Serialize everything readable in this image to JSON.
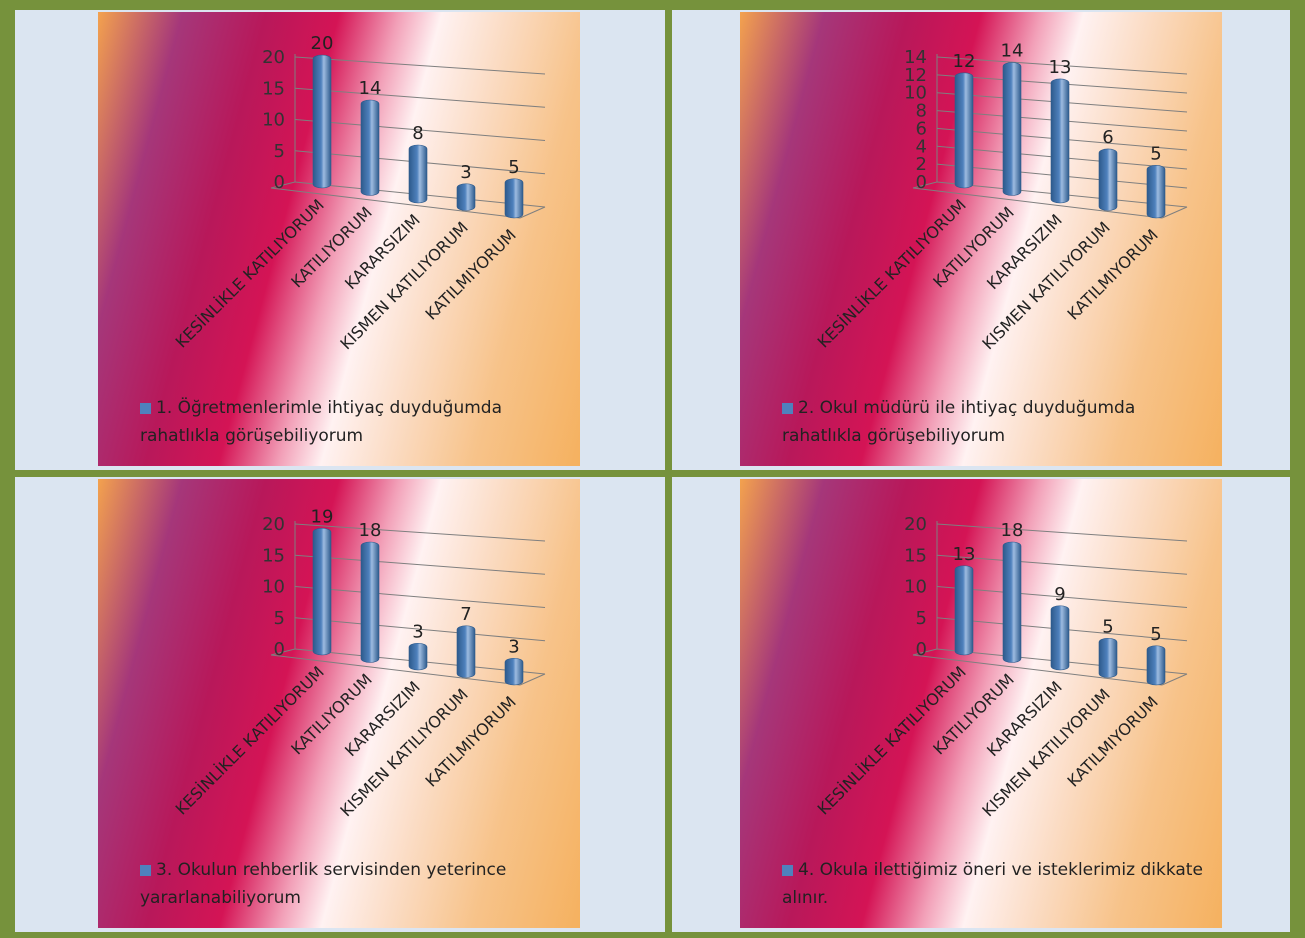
{
  "chart_data": [
    {
      "type": "bar",
      "categories": [
        "KESİNLİKLE KATILIYORUM",
        "KATILIYORUM",
        "KARARSIZIM",
        "KISMEN KATILIYORUM",
        "KATILMIYORUM"
      ],
      "series": [
        {
          "name": "1. Öğretmenlerimle ihtiyaç duyduğumda rahatlıkla görüşebiliyorum",
          "color": "#4f81bd",
          "values": [
            20,
            14,
            8,
            3,
            5
          ]
        }
      ],
      "ylim": [
        0,
        20
      ],
      "yticks": [
        0,
        5,
        10,
        15,
        20
      ],
      "grid": true
    },
    {
      "type": "bar",
      "categories": [
        "KESİNLİKLE KATILIYORUM",
        "KATILIYORUM",
        "KARARSIZIM",
        "KISMEN KATILIYORUM",
        "KATILMIYORUM"
      ],
      "series": [
        {
          "name": "2. Okul müdürü ile ihtiyaç duyduğumda rahatlıkla görüşebiliyorum",
          "color": "#4f81bd",
          "values": [
            12,
            14,
            13,
            6,
            5
          ]
        }
      ],
      "ylim": [
        0,
        14
      ],
      "yticks": [
        0,
        2,
        4,
        6,
        8,
        10,
        12,
        14
      ],
      "grid": true
    },
    {
      "type": "bar",
      "categories": [
        "KESİNLİKLE KATILIYORUM",
        "KATILIYORUM",
        "KARARSIZIM",
        "KISMEN KATILIYORUM",
        "KATILMIYORUM"
      ],
      "series": [
        {
          "name": "3. Okulun rehberlik servisinden yeterince yararlanabiliyorum",
          "color": "#4f81bd",
          "values": [
            19,
            18,
            3,
            7,
            3
          ]
        }
      ],
      "ylim": [
        0,
        20
      ],
      "yticks": [
        0,
        5,
        10,
        15,
        20
      ],
      "grid": true
    },
    {
      "type": "bar",
      "categories": [
        "KESİNLİKLE KATILIYORUM",
        "KATILIYORUM",
        "KARARSIZIM",
        "KISMEN KATILIYORUM",
        "KATILMIYORUM"
      ],
      "series": [
        {
          "name": "4. Okula ilettiğimiz öneri ve isteklerimiz dikkate alınır.",
          "color": "#4f81bd",
          "values": [
            13,
            18,
            9,
            5,
            5
          ]
        }
      ],
      "ylim": [
        0,
        20
      ],
      "yticks": [
        0,
        5,
        10,
        15,
        20
      ],
      "grid": true
    }
  ]
}
